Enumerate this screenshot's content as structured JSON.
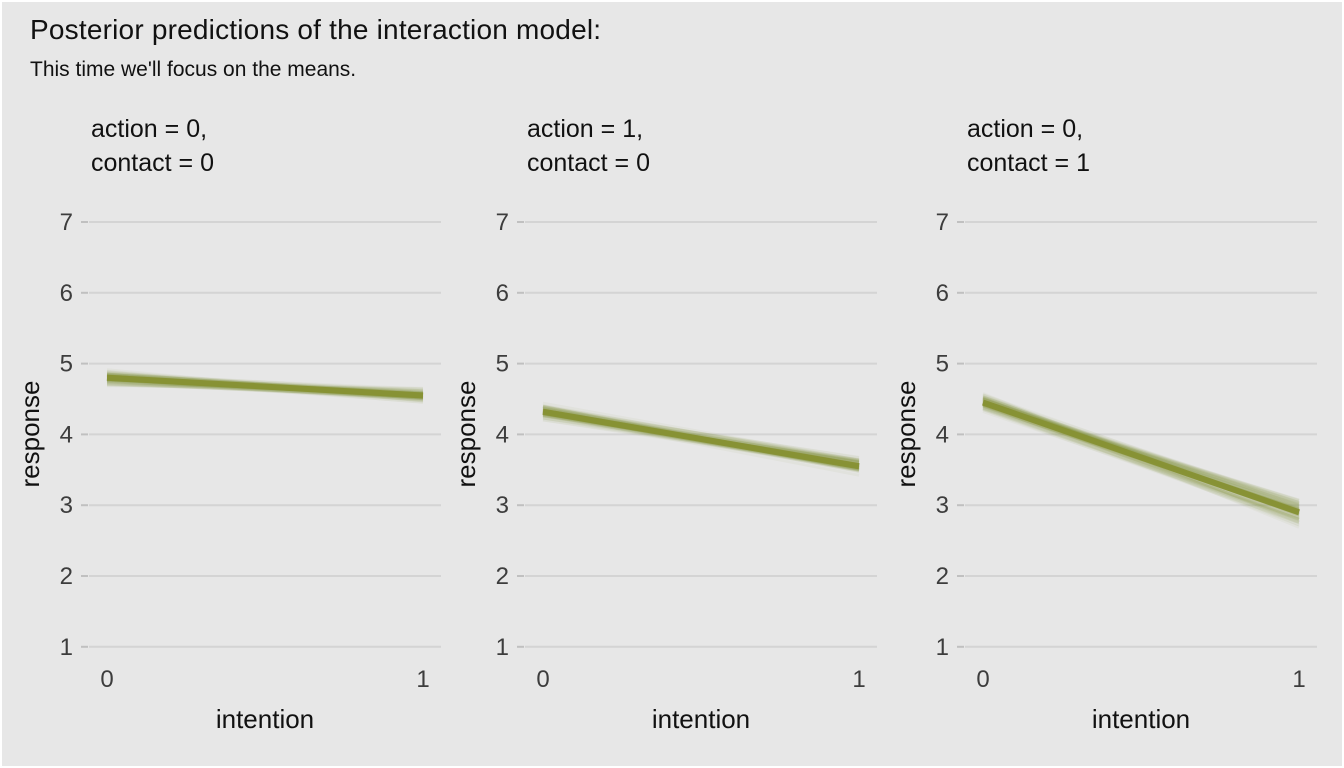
{
  "title": "Posterior predictions of the interaction model:",
  "subtitle": "This time we'll focus on the means.",
  "colors": {
    "background": "#e7e7e7",
    "gridline": "#d4d4d4",
    "axis_tick": "#c0c0c0",
    "draw_line": "#8c963c",
    "mean_line": "#879134",
    "title_text": "#111111",
    "axis_text": "#3d3d3d"
  },
  "chart_data": {
    "type": "line",
    "style": "bundle of translucent posterior draw lines with solid mean core",
    "x_label": "intention",
    "y_label": "response",
    "x": [
      0,
      1
    ],
    "x_tick_labels": [
      "0",
      "1"
    ],
    "y_ticks": [
      1,
      2,
      3,
      4,
      5,
      6,
      7
    ],
    "ylim": [
      1,
      7
    ],
    "grid": "horizontal major gridlines only",
    "legend": "none",
    "panels": [
      {
        "facet_line1": "action = 0,",
        "facet_line2": "contact = 0",
        "y_mean": [
          4.8,
          4.55
        ],
        "draw_spread": [
          0.045,
          0.045
        ]
      },
      {
        "facet_line1": "action = 1,",
        "facet_line2": "contact = 0",
        "y_mean": [
          4.32,
          3.55
        ],
        "draw_spread": [
          0.045,
          0.05
        ]
      },
      {
        "facet_line1": "action = 0,",
        "facet_line2": "contact = 1",
        "y_mean": [
          4.45,
          2.9
        ],
        "draw_spread": [
          0.055,
          0.075
        ]
      }
    ]
  }
}
